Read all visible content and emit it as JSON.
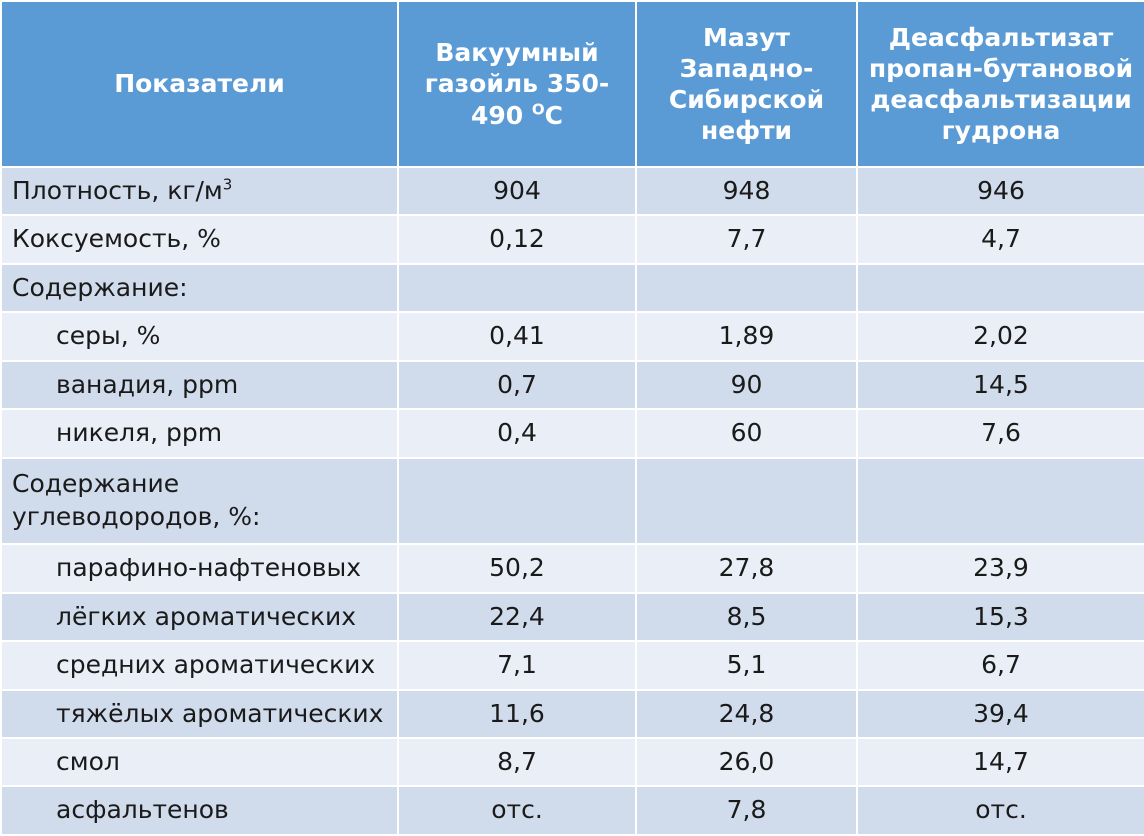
{
  "table": {
    "headers": [
      "Показатели",
      "Вакуумный газойль 350-490 ",
      "Мазут Западно-Сибирской нефти",
      "Деасфальтизат пропан-бутановой деасфальтизации гудрона"
    ],
    "header_superscript": "O",
    "header_unit_tail": "C",
    "rows": [
      {
        "label": "Плотность, кг/м",
        "sup": "3",
        "indent": false,
        "values": [
          "904",
          "948",
          "946"
        ]
      },
      {
        "label": "Коксуемость, %",
        "sup": "",
        "indent": false,
        "values": [
          "0,12",
          "7,7",
          "4,7"
        ]
      },
      {
        "label": "Содержание:",
        "sup": "",
        "indent": false,
        "values": [
          "",
          "",
          ""
        ]
      },
      {
        "label": "серы, %",
        "sup": "",
        "indent": true,
        "values": [
          "0,41",
          "1,89",
          "2,02"
        ]
      },
      {
        "label": "ванадия, ppm",
        "sup": "",
        "indent": true,
        "values": [
          "0,7",
          "90",
          "14,5"
        ]
      },
      {
        "label": "никеля, ppm",
        "sup": "",
        "indent": true,
        "values": [
          "0,4",
          "60",
          "7,6"
        ]
      },
      {
        "label": "Содержание углеводородов, %:",
        "sup": "",
        "indent": false,
        "values": [
          "",
          "",
          ""
        ]
      },
      {
        "label": "парафино-нафтеновых",
        "sup": "",
        "indent": true,
        "values": [
          "50,2",
          "27,8",
          "23,9"
        ]
      },
      {
        "label": "лёгких ароматических",
        "sup": "",
        "indent": true,
        "values": [
          "22,4",
          "8,5",
          "15,3"
        ]
      },
      {
        "label": "средних ароматических",
        "sup": "",
        "indent": true,
        "values": [
          "7,1",
          "5,1",
          "6,7"
        ]
      },
      {
        "label": "тяжёлых ароматических",
        "sup": "",
        "indent": true,
        "values": [
          "11,6",
          "24,8",
          "39,4"
        ]
      },
      {
        "label": "смол",
        "sup": "",
        "indent": true,
        "values": [
          "8,7",
          "26,0",
          "14,7"
        ]
      },
      {
        "label": "асфальтенов",
        "sup": "",
        "indent": true,
        "values": [
          "отс.",
          "7,8",
          "отс."
        ]
      }
    ]
  },
  "colors": {
    "header_bg": "#5b9bd5",
    "row_odd_bg": "#d0dbeb",
    "row_even_bg": "#e9eef7",
    "border": "#ffffff"
  }
}
